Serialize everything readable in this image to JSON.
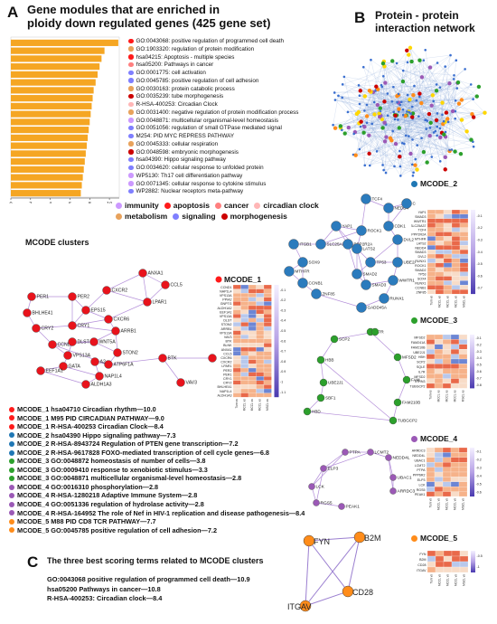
{
  "panelA": {
    "letter": "A",
    "title_line1": "Gene modules that are enriched in",
    "title_line2": "ploidy down regulated genes (425 gene set)",
    "xlabel": "-log10(P)",
    "xticks": [
      "0",
      "2",
      "4",
      "6",
      "8",
      "10"
    ],
    "terms": [
      {
        "label": "GO:0043068: positive regulation of programmed cell death",
        "value": 10.9,
        "color": "#ff1a1a"
      },
      {
        "label": "GO:1903320: regulation of protein modification",
        "value": 9.5,
        "color": "#e8a25c"
      },
      {
        "label": "hsa04215: Apoptosis - multiple species",
        "value": 9.2,
        "color": "#ff1a1a"
      },
      {
        "label": "hsa05200: Pathways in cancer",
        "value": 9.0,
        "color": "#ff7f7f"
      },
      {
        "label": "GO:0001775: cell activation",
        "value": 8.8,
        "color": "#7f7fff"
      },
      {
        "label": "GO:0045785: positive regulation of cell adhesion",
        "value": 8.6,
        "color": "#7f7fff"
      },
      {
        "label": "GO:0030163: protein catabolic process",
        "value": 8.4,
        "color": "#e8a25c"
      },
      {
        "label": "GO:0035239: tube morphogenesis",
        "value": 8.3,
        "color": "#cc0000"
      },
      {
        "label": "R-HSA-400253: Circadian Clock",
        "value": 8.2,
        "color": "#ffb6b6"
      },
      {
        "label": "GO:0031400: negative regulation of protein modification process",
        "value": 8.1,
        "color": "#e8a25c"
      },
      {
        "label": "GO:0048871: multicellular organismal-level homeostasis",
        "value": 8.0,
        "color": "#cc99ff"
      },
      {
        "label": "GO:0051056: regulation of small GTPase mediated signal",
        "value": 7.9,
        "color": "#7f7fff"
      },
      {
        "label": "M254: PID MYC REPRESS PATHWAY",
        "value": 7.8,
        "color": "#7f7fff"
      },
      {
        "label": "GO:0045333: cellular respiration",
        "value": 7.7,
        "color": "#e8a25c"
      },
      {
        "label": "GO:0048598: embryonic morphogenesis",
        "value": 7.6,
        "color": "#cc0000"
      },
      {
        "label": "hsa04390: Hippo signaling pathway",
        "value": 7.5,
        "color": "#7f7fff"
      },
      {
        "label": "GO:0034620: cellular response to unfolded protein",
        "value": 7.4,
        "color": "#7f7fff"
      },
      {
        "label": "WP5130: Th17 cell differentiation pathway",
        "value": 7.3,
        "color": "#cc99ff"
      },
      {
        "label": "GO:0071345: cellular response to cytokine stimulus",
        "value": 7.2,
        "color": "#cc99ff"
      },
      {
        "label": "WP2882: Nuclear receptors meta-pathway",
        "value": 7.1,
        "color": "#7f7fff"
      }
    ],
    "legend": [
      {
        "label": "immunity",
        "color": "#cc99ff"
      },
      {
        "label": "apoptosis",
        "color": "#ff1a1a"
      },
      {
        "label": "cancer",
        "color": "#ff7f7f"
      },
      {
        "label": "circadian clock",
        "color": "#ffb6b6"
      },
      {
        "label": "metabolism",
        "color": "#e8a25c"
      },
      {
        "label": "signaling",
        "color": "#7f7fff"
      },
      {
        "label": "morphogenesis",
        "color": "#cc0000"
      }
    ]
  },
  "panelB": {
    "letter": "B",
    "title_line1": "Protein - protein",
    "title_line2": "interaction network"
  },
  "mcode_clusters_label": "MCODE clusters",
  "mcode_terms": [
    {
      "text": "MCODE_1 hsa04710 Circadian rhythm—10.0",
      "color": "#ff1a1a"
    },
    {
      "text": "MCODE_1 M95  PID CIRCADIAN PATHWAY—9.0",
      "color": "#ff1a1a"
    },
    {
      "text": "MCODE_1 R-HSA-400253  Circadian Clock—8.4",
      "color": "#ff1a1a"
    },
    {
      "text": "MCODE_2 hsa04390 Hippo signaling pathway—7.3",
      "color": "#1f77b4"
    },
    {
      "text": "MCODE_2 R-HSA-8943724 Regulation of PTEN gene transcription—7.2",
      "color": "#1f77b4"
    },
    {
      "text": "MCODE_2 R-HSA-9617828 FOXO-mediated transcription of cell cycle genes—6.8",
      "color": "#1f77b4"
    },
    {
      "text": "MCODE_3 GO:0048872  homeostasis of number of cells—3.8",
      "color": "#2ca02c"
    },
    {
      "text": "MCODE_3 GO:0009410  response to xenobiotic stimulus—3.3",
      "color": "#2ca02c"
    },
    {
      "text": "MCODE_3 GO:0048871  multicellular organismal-level homeostasis—2.8",
      "color": "#2ca02c"
    },
    {
      "text": "MCODE_4 GO:0016310  phosphorylation—2.8",
      "color": "#9b59b6"
    },
    {
      "text": "MCODE_4 R-HSA-1280218 Adaptive Immune System—2.8",
      "color": "#9b59b6"
    },
    {
      "text": "MCODE_4 GO:0051336  regulation of hydrolase activity—2.8",
      "color": "#9b59b6"
    },
    {
      "text": "MCODE_4 R-HSA-164952  The role of Nef in HIV-1 replication and disease pathogenesis—8.4",
      "color": "#9b59b6"
    },
    {
      "text": "MCODE_5  M88  PID CD8 TCR PATHWAY—7.7",
      "color": "#ff8c1a"
    },
    {
      "text": "MCODE_5 GO:0045785  positive regulation of cell adhesion—7.2",
      "color": "#ff8c1a"
    }
  ],
  "heatmaps": [
    {
      "title": "MCODE_1",
      "color": "#ff1a1a",
      "rows": [
        "CCND1",
        "NAP1L4",
        "VPS13A",
        "PPIA2",
        "GNPTG",
        "ALDH1A2",
        "EEF1A1",
        "VPS13A",
        "DLST",
        "STON2",
        "ARRB1",
        "VPS13A",
        "VAV3",
        "BTK",
        "BLNK",
        "ANXA1",
        "CCL5",
        "CXCR6",
        "CXCR2",
        "LPAR1",
        "PER2",
        "PER1",
        "CRY1",
        "CRY2",
        "BHLHE41",
        "NAP1L4",
        "ALDH1A3"
      ],
      "cols": [
        "Tum vs",
        "MCCL vs",
        "MCCL vs",
        "MCCL vs",
        "MSCL vs"
      ],
      "ticks": [
        "-0.1",
        "-0.2",
        "-0.3",
        "-0.4",
        "-0.5",
        "-0.6",
        "-0.7",
        "-0.8",
        "-0.9",
        "-1",
        "-1.1"
      ]
    },
    {
      "title": "MCODE_2",
      "color": "#1f77b4",
      "rows": [
        "YAP1",
        "SMAD3",
        "WWTR1",
        "SLC25A37",
        "TCF4",
        "PPP2R2A",
        "MTHFR",
        "LATS2",
        "NEDD4",
        "SMAD3",
        "DVL2",
        "RUNX1",
        "ROCK1",
        "SMAD2",
        "TP53",
        "SOX4",
        "RUNX1",
        "CCNB1",
        "ZNF85"
      ],
      "cols": [
        "Tum vs",
        "MCCL vs",
        "MCCL vs",
        "MCCL vs",
        "MSCL vs"
      ],
      "ticks": [
        "-0.1",
        "-0.2",
        "-0.3",
        "-0.4",
        "-0.5",
        "-0.6",
        "-0.7"
      ]
    },
    {
      "title": "MCODE_3",
      "color": "#2ca02c",
      "rows": [
        "MFSD2",
        "FAM241A",
        "FAM210B",
        "UBE2J1",
        "HBH",
        "SCP2",
        "SQLE",
        "IL7R",
        "MFSD2",
        "STRN3",
        "TUBGCP2"
      ],
      "cols": [
        "Tum vs",
        "MCCL vs",
        "MCCL vs",
        "MCCL vs",
        "MSCL vs"
      ],
      "ticks": [
        "-0.1",
        "-0.2",
        "-0.3",
        "-0.4",
        "-0.5",
        "-0.6",
        "-0.7",
        "-0.8"
      ]
    },
    {
      "title": "MCODE_4",
      "color": "#9b59b6",
      "rows": [
        "ARRDC3",
        "NEDD4L",
        "UBAC1",
        "LCMT2",
        "PTPA",
        "PPP6R2",
        "ELP3",
        "LCK",
        "RGS5",
        "PEAK1"
      ],
      "cols": [
        "Tum vs",
        "MCCL vs",
        "MCCL vs",
        "MCCL vs",
        "MSCL vs"
      ],
      "ticks": [
        "-0.1",
        "-0.2",
        "-0.3",
        "-0.4",
        "-0.5",
        "-0.6"
      ]
    },
    {
      "title": "MCODE_5",
      "color": "#ff8c1a",
      "rows": [
        "FYN",
        "B2M",
        "CD28",
        "ITGAV"
      ],
      "cols": [
        "Tum vs",
        "MCCL vs",
        "MCCL vs",
        "MCCL vs",
        "MSCL vs"
      ],
      "ticks": [
        "-0.5",
        "-1"
      ]
    }
  ],
  "cluster_nodes": {
    "c1": [
      "ANXA1",
      "CCL5",
      "CXCR2",
      "LPAR1",
      "PER1",
      "PER2",
      "EPS15",
      "WNT5A",
      "CRY1",
      "CXCR6",
      "BHLHE41",
      "CRY2",
      "ARRB1",
      "STON2",
      "CCND1",
      "VPS13A",
      "GATA",
      "ATP6F1A",
      "BTK",
      "BLNK",
      "DLST",
      "NAP1L4",
      "VAV3",
      "EEF1A1",
      "ALDH1A3",
      "A2"
    ],
    "c2": [
      "TCF4",
      "NEDD4",
      "CNOT1",
      "SLC25A37",
      "ROCK1",
      "YAP1",
      "TP53",
      "SMAD2",
      "SMAD3",
      "PPP2R2A",
      "LATS2",
      "SOX9",
      "DVL2",
      "WWTR1",
      "RUNX1",
      "ITGB1",
      "UBE2A",
      "CCNB1",
      "GADD45A",
      "MTHFR",
      "ZNF85",
      "CDK1"
    ],
    "c3": [
      "IL7R",
      "SQLE",
      "MFSD2",
      "HBB",
      "FAM241A",
      "STRN3",
      "UBE2J1",
      "FAM210B",
      "TUBGCP2",
      "SCP2",
      "HBD"
    ],
    "c4": [
      "PTPA",
      "LCMT2",
      "UBAC1",
      "NEDD4L",
      "ELP3",
      "LCK",
      "ARRDC3",
      "RGS5",
      "PEAK1"
    ],
    "c5": [
      "FYN",
      "B2M",
      "ITGAV",
      "CD28"
    ]
  },
  "panelC": {
    "letter": "C",
    "title": "The three best scoring terms related to MCODE clusters",
    "terms": [
      "GO:0043068  positive regulation of programmed cell death—10.9",
      "hsa05200  Pathways in cancer—10.8",
      "R-HSA-400253: Circadian clock—8.4"
    ]
  }
}
